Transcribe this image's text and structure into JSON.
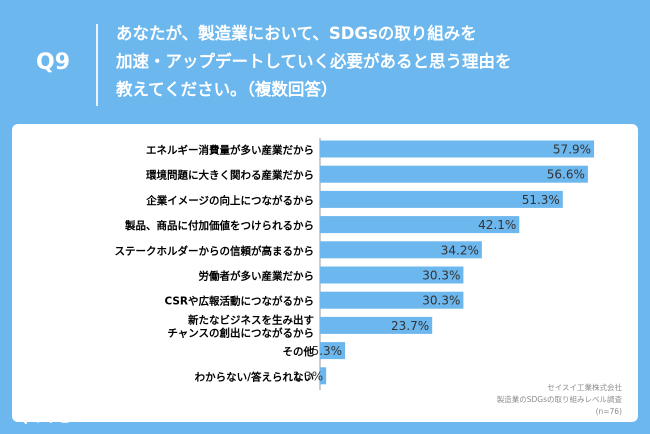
{
  "question": {
    "number": "Q9",
    "text_lines": [
      "あなたが、製造業において、SDGsの取り組みを",
      "加速・アップデートしていく必要があると思う理由を",
      "教えてください。（複数回答）"
    ]
  },
  "colors": {
    "background": "#6cb7ee",
    "bar": "#6cb7ee",
    "panel": "#ffffff",
    "label_text": "#000000",
    "value_text": "#333333"
  },
  "chart_data": {
    "type": "bar",
    "orientation": "horizontal",
    "title": "",
    "xlabel": "",
    "ylabel": "",
    "xlim": [
      0,
      60
    ],
    "grid": false,
    "categories": [
      "エネルギー消費量が多い産業だから",
      "環境問題に大きく関わる産業だから",
      "企業イメージの向上につながるから",
      "製品、商品に付加価値をつけられるから",
      "ステークホルダーからの信頼が高まるから",
      "労働者が多い産業だから",
      "CSRや広報活動につながるから",
      "新たなビジネスを生み出す\nチャンスの創出につながるから",
      "その他",
      "わからない/答えられない"
    ],
    "values": [
      57.9,
      56.6,
      51.3,
      42.1,
      34.2,
      30.3,
      30.3,
      23.7,
      5.3,
      1.3
    ],
    "value_labels": [
      "57.9%",
      "56.6%",
      "51.3%",
      "42.1%",
      "34.2%",
      "30.3%",
      "30.3%",
      "23.7%",
      "5.3%",
      "1.3%"
    ]
  },
  "source": {
    "lines": [
      "セイスイ工業株式会社",
      "製造業のSDGsの取り組みレベル調査",
      "(n=76)"
    ]
  },
  "brand": {
    "name": "リサピー"
  }
}
